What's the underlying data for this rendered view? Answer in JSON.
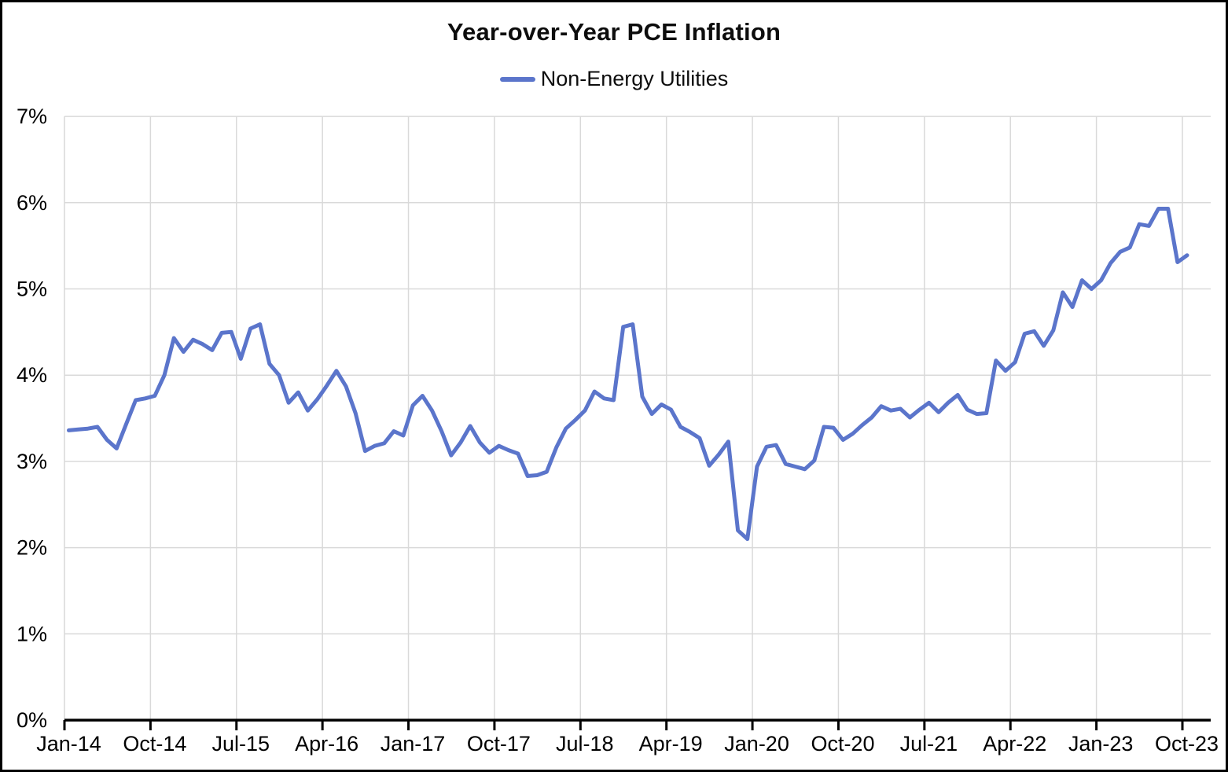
{
  "chart": {
    "title": "Year-over-Year PCE Inflation",
    "legend_label": "Non-Energy Utilities"
  },
  "chart_data": {
    "type": "line",
    "title": "Year-over-Year PCE Inflation",
    "xlabel": "",
    "ylabel": "",
    "legend_position": "top-center",
    "grid": true,
    "grid_color": "#d9d9d9",
    "axis_color": "#000000",
    "ylim": [
      0,
      7
    ],
    "y_tick_labels": [
      "0%",
      "1%",
      "2%",
      "3%",
      "4%",
      "5%",
      "6%",
      "7%"
    ],
    "x_tick_labels": [
      "Jan-14",
      "Oct-14",
      "Jul-15",
      "Apr-16",
      "Jan-17",
      "Oct-17",
      "Jul-18",
      "Apr-19",
      "Jan-20",
      "Oct-20",
      "Jul-21",
      "Apr-22",
      "Jan-23",
      "Oct-23"
    ],
    "x_range": [
      "Jan-14",
      "Oct-23"
    ],
    "frequency": "monthly",
    "series": [
      {
        "name": "Non-Energy Utilities",
        "color": "#5b75cb",
        "unit": "percent",
        "values": [
          3.36,
          3.37,
          3.38,
          3.4,
          3.25,
          3.15,
          3.43,
          3.71,
          3.73,
          3.76,
          4.0,
          4.43,
          4.27,
          4.41,
          4.36,
          4.29,
          4.49,
          4.5,
          4.19,
          4.54,
          4.59,
          4.13,
          4.0,
          3.68,
          3.8,
          3.59,
          3.72,
          3.88,
          4.05,
          3.87,
          3.56,
          3.12,
          3.18,
          3.21,
          3.35,
          3.3,
          3.65,
          3.76,
          3.59,
          3.35,
          3.07,
          3.22,
          3.41,
          3.22,
          3.1,
          3.18,
          3.13,
          3.09,
          2.83,
          2.84,
          2.88,
          3.16,
          3.38,
          3.48,
          3.59,
          3.81,
          3.73,
          3.71,
          4.56,
          4.59,
          3.75,
          3.55,
          3.66,
          3.6,
          3.4,
          3.34,
          3.27,
          2.95,
          3.08,
          3.23,
          2.2,
          2.1,
          2.94,
          3.17,
          3.19,
          2.97,
          2.94,
          2.91,
          3.01,
          3.4,
          3.39,
          3.25,
          3.32,
          3.42,
          3.51,
          3.64,
          3.59,
          3.61,
          3.51,
          3.6,
          3.68,
          3.57,
          3.68,
          3.77,
          3.6,
          3.55,
          3.56,
          4.17,
          4.05,
          4.15,
          4.48,
          4.51,
          4.34,
          4.52,
          4.96,
          4.79,
          5.1,
          5.0,
          5.1,
          5.3,
          5.43,
          5.48,
          5.75,
          5.73,
          5.93,
          5.93,
          5.31,
          5.39
        ]
      }
    ]
  }
}
